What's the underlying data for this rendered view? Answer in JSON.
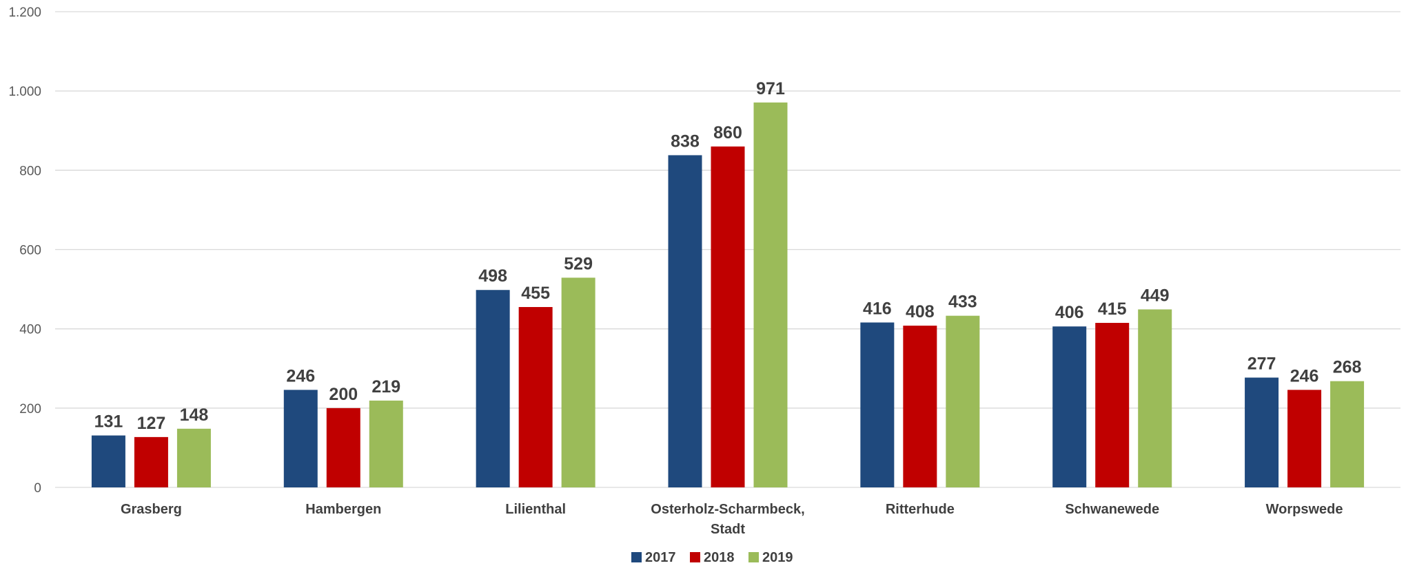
{
  "chart_data": {
    "type": "bar",
    "title": "",
    "xlabel": "",
    "ylabel": "",
    "categories": [
      [
        "Grasberg"
      ],
      [
        "Hambergen"
      ],
      [
        "Lilienthal"
      ],
      [
        "Osterholz-Scharmbeck,",
        "Stadt"
      ],
      [
        "Ritterhude"
      ],
      [
        "Schwanewede"
      ],
      [
        "Worpswede"
      ]
    ],
    "series": [
      {
        "name": "2017",
        "color": "#1f497d",
        "values": [
          131,
          246,
          498,
          838,
          416,
          406,
          277
        ]
      },
      {
        "name": "2018",
        "color": "#c00000",
        "values": [
          127,
          200,
          455,
          860,
          408,
          415,
          246
        ]
      },
      {
        "name": "2019",
        "color": "#9bbb59",
        "values": [
          148,
          219,
          529,
          971,
          433,
          449,
          268
        ]
      }
    ],
    "ylim": [
      0,
      1200
    ],
    "yticks": [
      0,
      200,
      400,
      600,
      800,
      1000,
      1200
    ],
    "ytick_labels": [
      "0",
      "200",
      "400",
      "600",
      "800",
      "1.000",
      "1.200"
    ],
    "grid": true,
    "legend_position": "bottom-center"
  }
}
